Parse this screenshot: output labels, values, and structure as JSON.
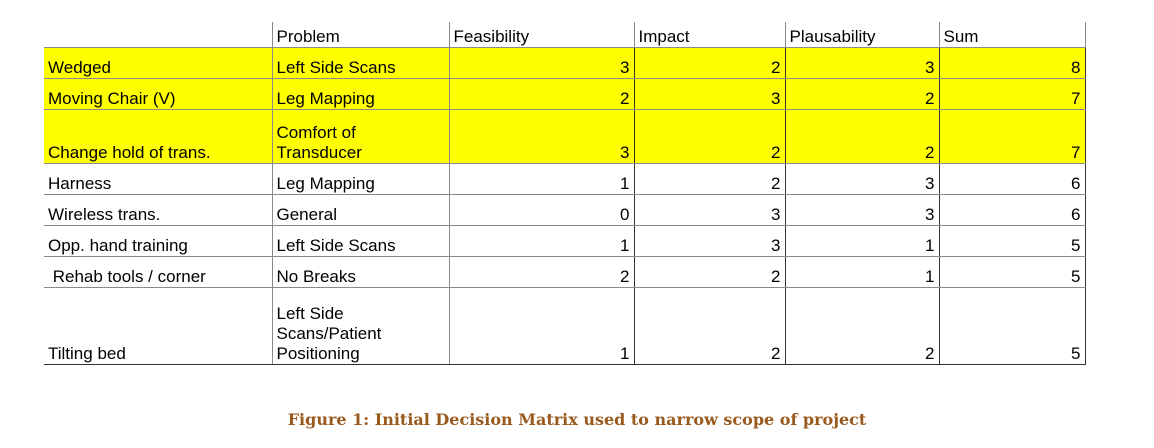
{
  "table": {
    "columns": [
      "",
      "Problem",
      "Feasibility",
      "Impact",
      "Plausability",
      "Sum"
    ],
    "rows": [
      {
        "name": "Wedged",
        "problem": "Left Side Scans",
        "feasibility": "3",
        "impact": "2",
        "plausability": "3",
        "sum": "8",
        "highlight": true
      },
      {
        "name": "Moving Chair (V)",
        "problem": "Leg Mapping",
        "feasibility": "2",
        "impact": "3",
        "plausability": "2",
        "sum": "7",
        "highlight": true
      },
      {
        "name": "Change hold of trans.",
        "problem": "Comfort of Transducer",
        "feasibility": "3",
        "impact": "2",
        "plausability": "2",
        "sum": "7",
        "highlight": true
      },
      {
        "name": "Harness",
        "problem": "Leg Mapping",
        "feasibility": "1",
        "impact": "2",
        "plausability": "3",
        "sum": "6",
        "highlight": false
      },
      {
        "name": "Wireless trans.",
        "problem": "General",
        "feasibility": "0",
        "impact": "3",
        "plausability": "3",
        "sum": "6",
        "highlight": false
      },
      {
        "name": "Opp. hand training",
        "problem": "Left Side Scans",
        "feasibility": "1",
        "impact": "3",
        "plausability": "1",
        "sum": "5",
        "highlight": false
      },
      {
        "name": " Rehab tools / corner",
        "problem": "No Breaks",
        "feasibility": "2",
        "impact": "2",
        "plausability": "1",
        "sum": "5",
        "highlight": false
      },
      {
        "name": "Tilting bed",
        "problem": "Left Side Scans/Patient Positioning",
        "feasibility": "1",
        "impact": "2",
        "plausability": "2",
        "sum": "5",
        "highlight": false
      }
    ],
    "highlight_color": "#ffff00"
  },
  "caption": "Figure 1: Initial Decision Matrix used to narrow scope of project"
}
